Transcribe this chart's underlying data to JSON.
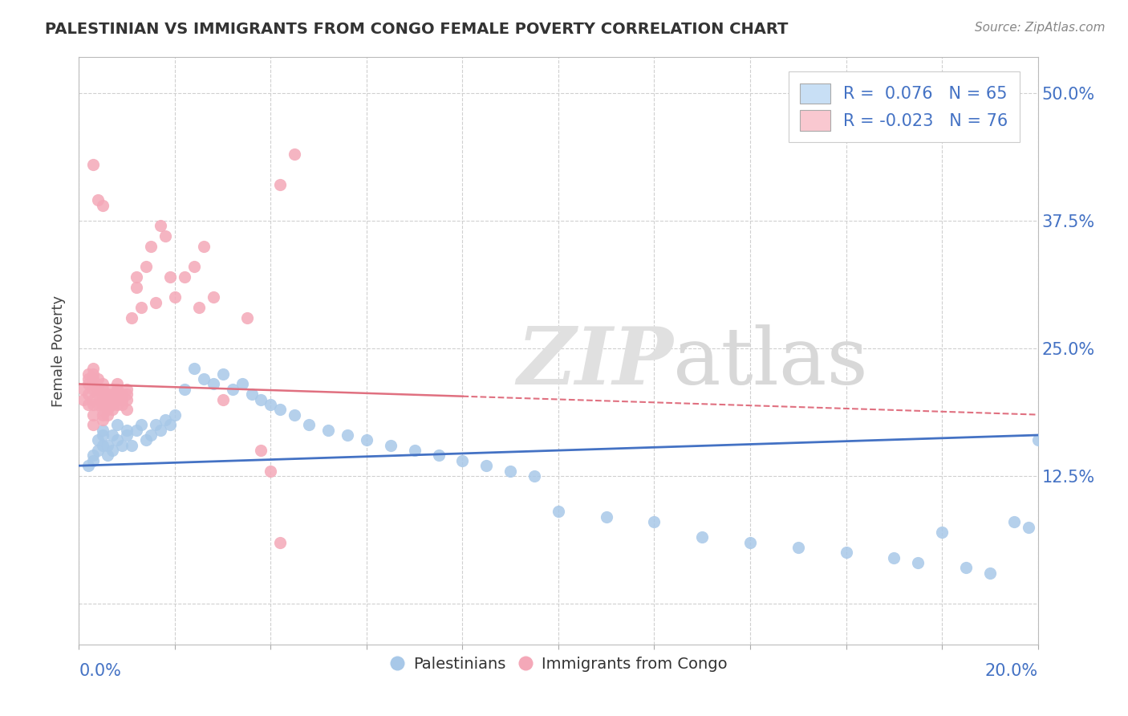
{
  "title": "PALESTINIAN VS IMMIGRANTS FROM CONGO FEMALE POVERTY CORRELATION CHART",
  "source": "Source: ZipAtlas.com",
  "ylabel": "Female Poverty",
  "y_ticks": [
    0.0,
    0.125,
    0.25,
    0.375,
    0.5
  ],
  "y_tick_labels": [
    "",
    "12.5%",
    "25.0%",
    "37.5%",
    "50.0%"
  ],
  "x_min": 0.0,
  "x_max": 0.2,
  "y_min": -0.04,
  "y_max": 0.535,
  "blue_R": 0.076,
  "blue_N": 65,
  "pink_R": -0.023,
  "pink_N": 76,
  "blue_color": "#a8c8e8",
  "pink_color": "#f4a8b8",
  "blue_line_color": "#4472C4",
  "pink_line_color": "#E07080",
  "blue_label": "Palestinians",
  "pink_label": "Immigrants from Congo",
  "legend_box_blue": "#c8dff5",
  "legend_box_pink": "#f9c8d0",
  "blue_scatter_x": [
    0.002,
    0.003,
    0.003,
    0.004,
    0.004,
    0.005,
    0.005,
    0.005,
    0.006,
    0.006,
    0.007,
    0.007,
    0.008,
    0.008,
    0.009,
    0.01,
    0.01,
    0.011,
    0.012,
    0.013,
    0.014,
    0.015,
    0.016,
    0.017,
    0.018,
    0.019,
    0.02,
    0.022,
    0.024,
    0.026,
    0.028,
    0.03,
    0.032,
    0.034,
    0.036,
    0.038,
    0.04,
    0.042,
    0.045,
    0.048,
    0.052,
    0.056,
    0.06,
    0.065,
    0.07,
    0.075,
    0.08,
    0.085,
    0.09,
    0.095,
    0.1,
    0.11,
    0.12,
    0.13,
    0.14,
    0.15,
    0.16,
    0.17,
    0.175,
    0.18,
    0.185,
    0.19,
    0.195,
    0.198,
    0.2
  ],
  "blue_scatter_y": [
    0.135,
    0.14,
    0.145,
    0.15,
    0.16,
    0.155,
    0.165,
    0.17,
    0.145,
    0.155,
    0.15,
    0.165,
    0.16,
    0.175,
    0.155,
    0.165,
    0.17,
    0.155,
    0.17,
    0.175,
    0.16,
    0.165,
    0.175,
    0.17,
    0.18,
    0.175,
    0.185,
    0.21,
    0.23,
    0.22,
    0.215,
    0.225,
    0.21,
    0.215,
    0.205,
    0.2,
    0.195,
    0.19,
    0.185,
    0.175,
    0.17,
    0.165,
    0.16,
    0.155,
    0.15,
    0.145,
    0.14,
    0.135,
    0.13,
    0.125,
    0.09,
    0.085,
    0.08,
    0.065,
    0.06,
    0.055,
    0.05,
    0.045,
    0.04,
    0.07,
    0.035,
    0.03,
    0.08,
    0.075,
    0.16
  ],
  "pink_scatter_x": [
    0.001,
    0.001,
    0.002,
    0.002,
    0.002,
    0.002,
    0.002,
    0.003,
    0.003,
    0.003,
    0.003,
    0.003,
    0.003,
    0.003,
    0.003,
    0.003,
    0.004,
    0.004,
    0.004,
    0.004,
    0.005,
    0.005,
    0.005,
    0.005,
    0.005,
    0.005,
    0.005,
    0.005,
    0.006,
    0.006,
    0.006,
    0.006,
    0.006,
    0.007,
    0.007,
    0.007,
    0.007,
    0.007,
    0.008,
    0.008,
    0.008,
    0.008,
    0.008,
    0.009,
    0.009,
    0.009,
    0.01,
    0.01,
    0.01,
    0.01,
    0.011,
    0.012,
    0.012,
    0.013,
    0.014,
    0.015,
    0.016,
    0.017,
    0.018,
    0.019,
    0.02,
    0.022,
    0.024,
    0.025,
    0.026,
    0.028,
    0.03,
    0.035,
    0.038,
    0.04,
    0.042,
    0.045,
    0.042,
    0.004,
    0.005,
    0.003
  ],
  "pink_scatter_y": [
    0.2,
    0.21,
    0.195,
    0.205,
    0.215,
    0.22,
    0.225,
    0.175,
    0.185,
    0.195,
    0.2,
    0.21,
    0.215,
    0.22,
    0.225,
    0.23,
    0.195,
    0.205,
    0.21,
    0.22,
    0.18,
    0.185,
    0.19,
    0.195,
    0.2,
    0.205,
    0.21,
    0.215,
    0.185,
    0.19,
    0.195,
    0.2,
    0.205,
    0.19,
    0.195,
    0.2,
    0.205,
    0.21,
    0.195,
    0.2,
    0.205,
    0.21,
    0.215,
    0.195,
    0.2,
    0.205,
    0.19,
    0.2,
    0.205,
    0.21,
    0.28,
    0.31,
    0.32,
    0.29,
    0.33,
    0.35,
    0.295,
    0.37,
    0.36,
    0.32,
    0.3,
    0.32,
    0.33,
    0.29,
    0.35,
    0.3,
    0.2,
    0.28,
    0.15,
    0.13,
    0.41,
    0.44,
    0.06,
    0.395,
    0.39,
    0.43
  ]
}
